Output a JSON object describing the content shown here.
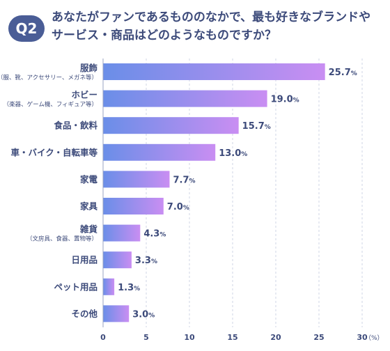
{
  "header": {
    "badge": "Q2",
    "question_line1": "あなたがファンであるもののなかで、最も好きなブランドや",
    "question_line2": "サービス・商品はどのようなものですか？"
  },
  "chart_data": {
    "type": "bar",
    "orientation": "horizontal",
    "categories": [
      {
        "label": "服飾",
        "sub": "（服、靴、アクセサリー、メガネ等）"
      },
      {
        "label": "ホビー",
        "sub": "（楽器、ゲーム機、フィギュア等）"
      },
      {
        "label": "食品・飲料",
        "sub": ""
      },
      {
        "label": "車・バイク・自転車等",
        "sub": ""
      },
      {
        "label": "家電",
        "sub": ""
      },
      {
        "label": "家具",
        "sub": ""
      },
      {
        "label": "雑貨",
        "sub": "（文房具、食器、置物等）"
      },
      {
        "label": "日用品",
        "sub": ""
      },
      {
        "label": "ペット用品",
        "sub": ""
      },
      {
        "label": "その他",
        "sub": ""
      }
    ],
    "values": [
      25.7,
      19.0,
      15.7,
      13.0,
      7.7,
      7.0,
      4.3,
      3.3,
      1.3,
      3.0
    ],
    "value_labels": [
      "25.7",
      "19.0",
      "15.7",
      "13.0",
      "7.7",
      "7.0",
      "4.3",
      "3.3",
      "1.3",
      "3.0"
    ],
    "value_suffix": "%",
    "xlim": [
      0,
      30
    ],
    "xticks": [
      "0",
      "5",
      "10",
      "15",
      "20",
      "25",
      "30"
    ],
    "xunit": "（%）",
    "grid": true,
    "colors": {
      "bar_start": "#6a8ee8",
      "bar_end": "#c98ef2",
      "text": "#3c4a7a",
      "grid": "#cfd5e6",
      "badge": "#4a5d96"
    }
  }
}
